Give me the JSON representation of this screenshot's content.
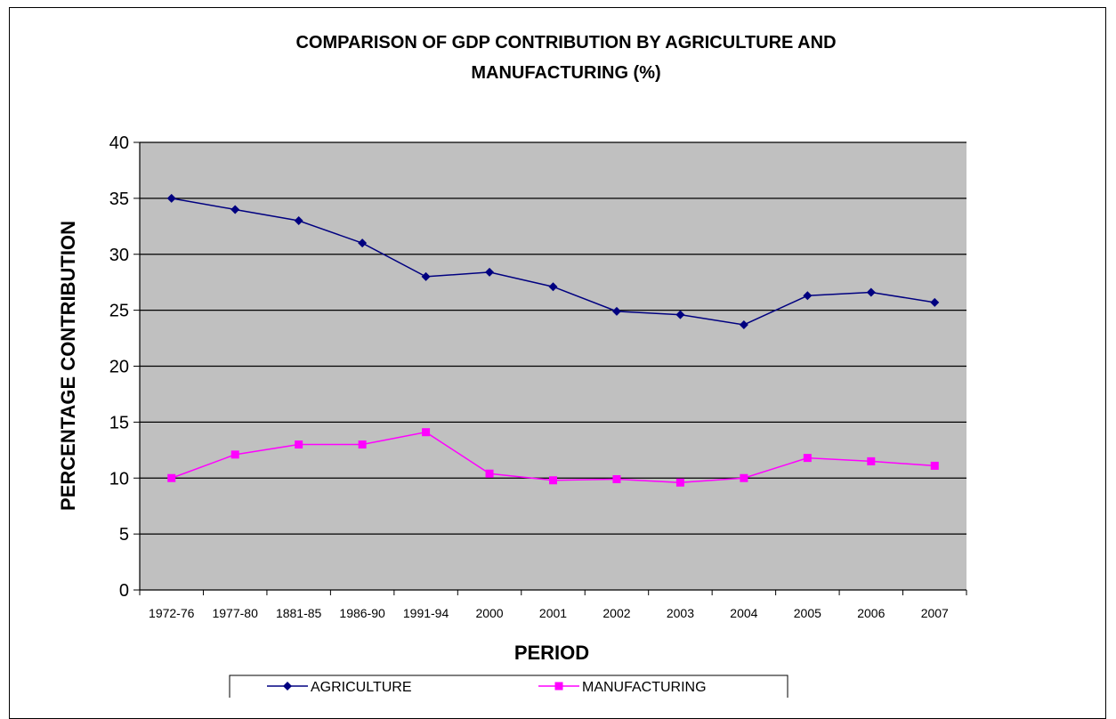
{
  "chart_data": {
    "type": "line",
    "title_line1": "COMPARISON OF GDP CONTRIBUTION BY AGRICULTURE AND",
    "title_line2": "MANUFACTURING (%)",
    "xlabel": "PERIOD",
    "ylabel": "PERCENTAGE CONTRIBUTION",
    "ylim": [
      0,
      40
    ],
    "yticks": [
      0,
      5,
      10,
      15,
      20,
      25,
      30,
      35,
      40
    ],
    "categories": [
      "1972-76",
      "1977-80",
      "1881-85",
      "1986-90",
      "1991-94",
      "2000",
      "2001",
      "2002",
      "2003",
      "2004",
      "2005",
      "2006",
      "2007"
    ],
    "series": [
      {
        "name": "AGRICULTURE",
        "color": "#000080",
        "marker": "diamond",
        "values": [
          35.0,
          34.0,
          33.0,
          31.0,
          28.0,
          28.4,
          27.1,
          24.9,
          24.6,
          23.7,
          26.3,
          26.6,
          25.7
        ]
      },
      {
        "name": "MANUFACTURING",
        "color": "#ff00ff",
        "marker": "square",
        "values": [
          10.0,
          12.1,
          13.0,
          13.0,
          14.1,
          10.4,
          9.8,
          9.9,
          9.6,
          10.0,
          11.8,
          11.5,
          11.1
        ]
      }
    ],
    "plot_background": "#c0c0c0",
    "grid": true,
    "legend_position": "bottom"
  }
}
